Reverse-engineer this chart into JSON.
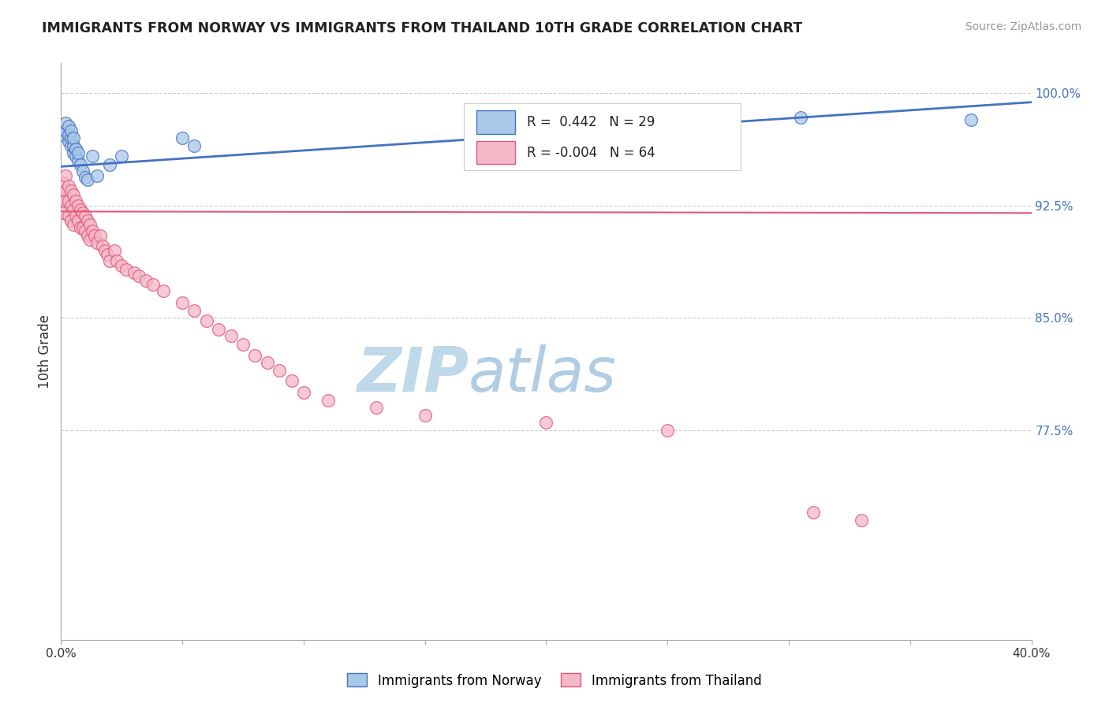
{
  "title": "IMMIGRANTS FROM NORWAY VS IMMIGRANTS FROM THAILAND 10TH GRADE CORRELATION CHART",
  "source": "Source: ZipAtlas.com",
  "ylabel": "10th Grade",
  "xlim": [
    0.0,
    0.4
  ],
  "ylim": [
    0.635,
    1.02
  ],
  "yticks_right": [
    0.775,
    0.85,
    0.925,
    1.0
  ],
  "yticklabels_right": [
    "77.5%",
    "85.0%",
    "92.5%",
    "100.0%"
  ],
  "norway_R": 0.442,
  "norway_N": 29,
  "thailand_R": -0.004,
  "thailand_N": 64,
  "norway_color": "#a8c8e8",
  "thailand_color": "#f5b8c8",
  "trendline_norway_color": "#4472c4",
  "trendline_thailand_color": "#e05878",
  "watermark_zip_color": "#c8dff0",
  "watermark_atlas_color": "#c0d8e8",
  "norway_x": [
    0.001,
    0.002,
    0.002,
    0.003,
    0.003,
    0.003,
    0.004,
    0.004,
    0.004,
    0.005,
    0.005,
    0.005,
    0.006,
    0.006,
    0.007,
    0.007,
    0.008,
    0.009,
    0.01,
    0.011,
    0.013,
    0.015,
    0.02,
    0.025,
    0.05,
    0.055,
    0.24,
    0.305,
    0.375
  ],
  "norway_y": [
    0.972,
    0.975,
    0.98,
    0.968,
    0.972,
    0.978,
    0.965,
    0.97,
    0.975,
    0.96,
    0.965,
    0.97,
    0.958,
    0.963,
    0.955,
    0.96,
    0.952,
    0.948,
    0.944,
    0.942,
    0.958,
    0.945,
    0.952,
    0.958,
    0.97,
    0.965,
    0.978,
    0.984,
    0.982
  ],
  "thailand_x": [
    0.001,
    0.001,
    0.001,
    0.002,
    0.002,
    0.002,
    0.003,
    0.003,
    0.003,
    0.004,
    0.004,
    0.004,
    0.005,
    0.005,
    0.005,
    0.006,
    0.006,
    0.007,
    0.007,
    0.008,
    0.008,
    0.009,
    0.009,
    0.01,
    0.01,
    0.011,
    0.011,
    0.012,
    0.012,
    0.013,
    0.014,
    0.015,
    0.016,
    0.017,
    0.018,
    0.019,
    0.02,
    0.022,
    0.023,
    0.025,
    0.027,
    0.03,
    0.032,
    0.035,
    0.038,
    0.042,
    0.05,
    0.055,
    0.06,
    0.065,
    0.07,
    0.075,
    0.08,
    0.085,
    0.09,
    0.095,
    0.1,
    0.11,
    0.13,
    0.15,
    0.2,
    0.25,
    0.31,
    0.33
  ],
  "thailand_y": [
    0.94,
    0.93,
    0.92,
    0.945,
    0.935,
    0.928,
    0.938,
    0.928,
    0.918,
    0.935,
    0.925,
    0.915,
    0.932,
    0.922,
    0.912,
    0.928,
    0.918,
    0.925,
    0.915,
    0.922,
    0.91,
    0.92,
    0.91,
    0.918,
    0.908,
    0.915,
    0.905,
    0.912,
    0.902,
    0.908,
    0.905,
    0.9,
    0.905,
    0.898,
    0.895,
    0.892,
    0.888,
    0.895,
    0.888,
    0.885,
    0.882,
    0.88,
    0.878,
    0.875,
    0.872,
    0.868,
    0.86,
    0.855,
    0.848,
    0.842,
    0.838,
    0.832,
    0.825,
    0.82,
    0.815,
    0.808,
    0.8,
    0.795,
    0.79,
    0.785,
    0.78,
    0.775,
    0.72,
    0.715
  ],
  "norway_trendline_x": [
    0.0,
    0.4
  ],
  "norway_trendline_y": [
    0.951,
    0.994
  ],
  "thailand_trendline_x": [
    0.0,
    0.4
  ],
  "thailand_trendline_y": [
    0.921,
    0.92
  ]
}
